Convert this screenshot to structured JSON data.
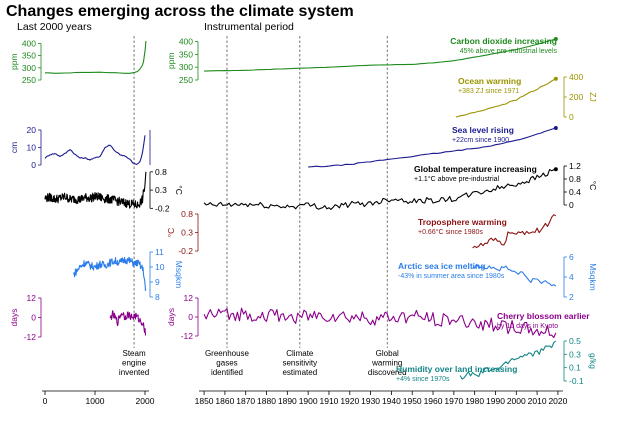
{
  "title": "Changes emerging across the climate system",
  "subtitle_left": "Last 2000 years",
  "subtitle_right": "Instrumental period",
  "colors": {
    "co2": "#1e8a1e",
    "ocean": "#9b9400",
    "sea": "#1a1a8f",
    "temp": "#000000",
    "tropo": "#8b1212",
    "ice": "#2b7de9",
    "cherry": "#8b008b",
    "humid": "#138585"
  },
  "events": [
    {
      "label": "Steam\nengine\ninvented",
      "year": 1781,
      "panel": "left"
    },
    {
      "label": "Greenhouse\ngases\nidentified",
      "year": 1861,
      "panel": "right"
    },
    {
      "label": "Climate\nsensitivity\nestimated",
      "year": 1896,
      "panel": "right"
    },
    {
      "label": "Global\nwarming\ndiscovered",
      "year": 1938,
      "panel": "right"
    }
  ],
  "chart_data": [
    {
      "type": "line",
      "panel": "left",
      "x_ticks": [
        0,
        1000,
        2000
      ],
      "xlim": [
        0,
        2020
      ],
      "series": [
        {
          "key": "co2",
          "ylabel": "ppm",
          "ticks": [
            400,
            350,
            300,
            250
          ],
          "x": [
            0,
            200,
            400,
            600,
            800,
            1000,
            1200,
            1400,
            1600,
            1700,
            1800,
            1850,
            1900,
            1950,
            1970,
            1990,
            2000,
            2010,
            2019
          ],
          "y": [
            279,
            278,
            278,
            281,
            281,
            282,
            281,
            280,
            278,
            277,
            282,
            285,
            296,
            311,
            325,
            354,
            369,
            389,
            410
          ]
        },
        {
          "key": "sea",
          "ylabel": "cm",
          "ticks": [
            20,
            10,
            0
          ],
          "x": [
            0,
            100,
            200,
            300,
            400,
            500,
            600,
            700,
            800,
            900,
            1000,
            1100,
            1200,
            1300,
            1400,
            1500,
            1600,
            1700,
            1750,
            1800,
            1850,
            1900,
            1950,
            2000
          ],
          "y": [
            4,
            6,
            6.5,
            5,
            6.5,
            9,
            6,
            4,
            4,
            3,
            4,
            5,
            10,
            11.5,
            8,
            6,
            5,
            3,
            1.5,
            0.5,
            0.5,
            2,
            7,
            17
          ]
        },
        {
          "key": "temp",
          "ylabel": "°C",
          "ticks": [
            0.8,
            0.3,
            -0.2
          ],
          "x": [
            0,
            100,
            200,
            300,
            400,
            500,
            600,
            700,
            800,
            900,
            1000,
            1100,
            1200,
            1300,
            1400,
            1500,
            1600,
            1700,
            1800,
            1850,
            1900,
            1950,
            2000,
            2019
          ],
          "y": [
            0.08,
            0.1,
            0.05,
            0.08,
            0.12,
            0.05,
            0.06,
            0.04,
            0.1,
            0.08,
            0.12,
            0.1,
            0.06,
            0.05,
            0.02,
            -0.02,
            -0.05,
            -0.08,
            -0.1,
            -0.12,
            -0.05,
            0.05,
            0.45,
            0.8
          ]
        },
        {
          "key": "ice",
          "ylabel": "Msqkm",
          "ticks": [
            11,
            10,
            9,
            8
          ],
          "x": [
            570,
            700,
            800,
            900,
            1000,
            1100,
            1200,
            1300,
            1400,
            1500,
            1600,
            1700,
            1800,
            1850,
            1900,
            1950,
            1980,
            2000,
            2010
          ],
          "y": [
            9.5,
            10.0,
            10.3,
            10.1,
            10.0,
            10.2,
            10.1,
            10.3,
            10.4,
            10.3,
            10.5,
            10.4,
            10.2,
            10.3,
            10.1,
            9.9,
            9.5,
            8.8,
            8.4
          ]
        },
        {
          "key": "cherry",
          "ylabel": "days",
          "ticks": [
            12,
            0,
            -12
          ],
          "x": [
            1300,
            1350,
            1400,
            1450,
            1500,
            1550,
            1600,
            1650,
            1700,
            1750,
            1800,
            1850,
            1900,
            1950,
            2000,
            2019
          ],
          "y": [
            -1,
            2,
            0,
            -3,
            1,
            3,
            0,
            2,
            1,
            0,
            1,
            0,
            -2,
            -3,
            -8,
            -11
          ]
        }
      ]
    },
    {
      "type": "line",
      "panel": "right",
      "x_ticks": [
        1850,
        1860,
        1870,
        1880,
        1890,
        1900,
        1910,
        1920,
        1930,
        1940,
        1950,
        1960,
        1970,
        1980,
        1990,
        2000,
        2010,
        2020
      ],
      "xlim": [
        1849,
        2021
      ],
      "series": [
        {
          "key": "co2",
          "ylabel": "ppm",
          "ticks": [
            400,
            350,
            300,
            250
          ],
          "name": "Carbon dioxide increasing",
          "note": "45% above pre-industrial levels",
          "x": [
            1850,
            1870,
            1890,
            1910,
            1930,
            1950,
            1960,
            1970,
            1980,
            1990,
            2000,
            2010,
            2019
          ],
          "y": [
            285,
            288,
            294,
            300,
            308,
            311,
            317,
            325,
            339,
            354,
            369,
            389,
            410
          ]
        },
        {
          "key": "ocean",
          "ylabel": "ZJ",
          "ticks": [
            400,
            200,
            0
          ],
          "name": "Ocean warming",
          "note": "+383 ZJ since 1971",
          "x": [
            1971,
            1975,
            1980,
            1985,
            1990,
            1995,
            2000,
            2005,
            2010,
            2015,
            2019
          ],
          "y": [
            0,
            20,
            45,
            75,
            105,
            135,
            170,
            230,
            280,
            330,
            383
          ]
        },
        {
          "key": "sea",
          "ylabel": "cm",
          "ticks": [
            20,
            10,
            0
          ],
          "name": "Sea level rising",
          "note": "+22cm since 1900",
          "x": [
            1900,
            1910,
            1920,
            1930,
            1940,
            1950,
            1960,
            1970,
            1980,
            1990,
            2000,
            2010,
            2019
          ],
          "y": [
            0,
            0.5,
            1.5,
            3,
            4.5,
            6,
            7.5,
            9,
            10.5,
            12.5,
            15,
            18.5,
            22
          ]
        },
        {
          "key": "temp",
          "ylabel": "°C",
          "ticks": [
            1.2,
            0.8,
            0.4,
            0
          ],
          "name": "Global temperature increasing",
          "note": "+1.1°C above pre-industrial",
          "x": [
            1850,
            1860,
            1870,
            1880,
            1890,
            1900,
            1910,
            1920,
            1930,
            1940,
            1950,
            1960,
            1970,
            1980,
            1990,
            2000,
            2010,
            2019
          ],
          "y": [
            0.0,
            0.0,
            0.02,
            -0.02,
            -0.05,
            0.0,
            -0.08,
            0.02,
            0.05,
            0.2,
            0.12,
            0.15,
            0.18,
            0.35,
            0.5,
            0.65,
            0.85,
            1.1
          ]
        },
        {
          "key": "tropo",
          "ylabel": "°C",
          "ticks": [
            0.8,
            0.3,
            -0.2
          ],
          "name": "Troposphere warming",
          "note": "+0.66°C since 1980s",
          "x": [
            1979,
            1982,
            1985,
            1988,
            1991,
            1994,
            1997,
            2000,
            2003,
            2006,
            2009,
            2012,
            2015,
            2019
          ],
          "y": [
            -0.05,
            -0.08,
            -0.02,
            0.08,
            0.05,
            0.02,
            0.35,
            0.2,
            0.3,
            0.35,
            0.3,
            0.4,
            0.55,
            0.75
          ]
        },
        {
          "key": "ice",
          "ylabel": "Msqkm",
          "ticks": [
            6,
            4,
            2
          ],
          "name": "Arctic sea ice melting",
          "note": "-43% in summer area since 1980s",
          "x": [
            1979,
            1983,
            1987,
            1991,
            1995,
            1999,
            2003,
            2007,
            2011,
            2015,
            2019
          ],
          "y": [
            5.0,
            5.1,
            5.0,
            4.8,
            4.9,
            4.5,
            4.3,
            3.7,
            3.6,
            3.4,
            3.1
          ]
        },
        {
          "key": "cherry",
          "ylabel": "days",
          "ticks": [
            12,
            0,
            -12
          ],
          "name": "Cherry blossom earlier",
          "note": "by 10 days in Kyoto",
          "x": [
            1850,
            1870,
            1890,
            1910,
            1930,
            1950,
            1970,
            1990,
            2000,
            2010,
            2019
          ],
          "y": [
            1,
            2,
            0,
            1,
            -1,
            0,
            -2,
            -5,
            -7,
            -9,
            -10
          ]
        },
        {
          "key": "humid",
          "ylabel": "g/kg",
          "ticks": [
            0.5,
            0.3,
            0.1,
            -0.1
          ],
          "name": "Humidity over land increasing",
          "note": "+4% since 1970s",
          "x": [
            1973,
            1977,
            1981,
            1985,
            1989,
            1993,
            1997,
            2001,
            2005,
            2009,
            2013,
            2017,
            2019
          ],
          "y": [
            -0.05,
            0.0,
            -0.02,
            0.05,
            0.08,
            0.1,
            0.22,
            0.25,
            0.3,
            0.32,
            0.35,
            0.45,
            0.5
          ]
        }
      ]
    }
  ]
}
